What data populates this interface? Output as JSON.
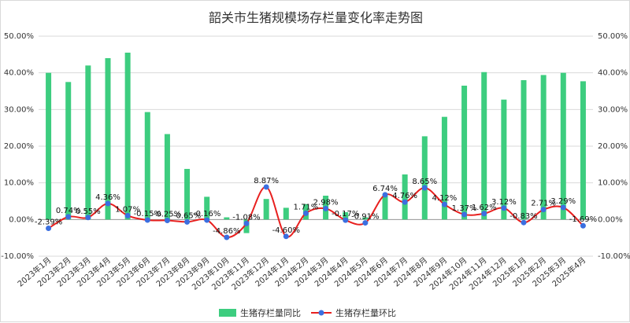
{
  "chart_data": {
    "type": "bar",
    "title": "韶关市生猪规模场存栏量变化率走势图",
    "categories": [
      "2023年1月",
      "2023年2月",
      "2023年3月",
      "2023年4月",
      "2023年5月",
      "2023年6月",
      "2023年7月",
      "2023年8月",
      "2023年9月",
      "2023年10月",
      "2023年11月",
      "2023年12月",
      "2024年1月",
      "2024年2月",
      "2024年3月",
      "2024年4月",
      "2024年5月",
      "2024年6月",
      "2024年7月",
      "2024年8月",
      "2024年9月",
      "2024年10月",
      "2024年11月",
      "2024年12月",
      "2025年1月",
      "2025年2月",
      "2025年3月",
      "2025年4月"
    ],
    "y_ticks": [
      "50.00%",
      "40.00%",
      "30.00%",
      "20.00%",
      "10.00%",
      "0.00%",
      "-10.00%"
    ],
    "ylim": [
      -10,
      50
    ],
    "grid": true,
    "legend_position": "bottom",
    "series": [
      {
        "name": "生猪存栏量同比",
        "kind": "bar",
        "color": "#3dcd7f",
        "values": [
          40.0,
          37.5,
          42.0,
          44.0,
          45.5,
          29.3,
          23.3,
          13.8,
          6.2,
          0.6,
          -3.7,
          5.6,
          3.2,
          4.2,
          6.5,
          2.0,
          0.6,
          6.5,
          12.3,
          22.7,
          28.0,
          36.5,
          40.2,
          32.7,
          38.0,
          39.4,
          40.0,
          37.7
        ]
      },
      {
        "name": "生猪存栏量环比",
        "kind": "line",
        "color": "#e8201f",
        "marker_color": "#3b6fe0",
        "values": [
          -2.39,
          0.74,
          0.55,
          4.36,
          1.07,
          -0.15,
          -0.25,
          -0.65,
          -0.16,
          -4.86,
          -1.08,
          8.87,
          -4.6,
          1.71,
          2.98,
          -0.17,
          -0.91,
          6.74,
          4.76,
          8.65,
          4.12,
          1.37,
          1.62,
          3.12,
          -0.83,
          2.71,
          3.29,
          -1.69
        ],
        "labels": [
          "-2.39%",
          "0.74%",
          "0.55%",
          "4.36%",
          "1.07%",
          "-0.15%",
          "-0.25%",
          "-0.65%",
          "-0.16%",
          "-4.86%",
          "-1.08%",
          "8.87%",
          "-4.60%",
          "1.71%",
          "2.98%",
          "-0.17%",
          "-0.91%",
          "6.74%",
          "4.76%",
          "8.65%",
          "4.12%",
          "1.37%",
          "1.62%",
          "3.12%",
          "-0.83%",
          "2.71%",
          "3.29%",
          "-1.69%"
        ]
      }
    ]
  }
}
